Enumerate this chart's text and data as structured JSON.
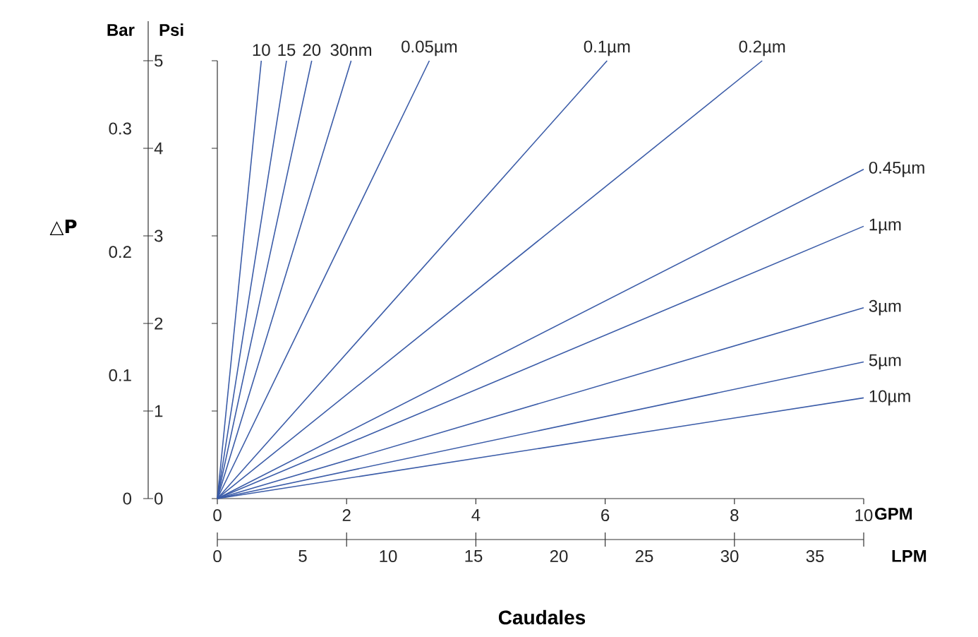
{
  "chart_data": {
    "type": "line",
    "xlabel": "GPM",
    "x2label": "LPM",
    "ylabel": "Psi",
    "y2label": "Bar",
    "annotations": [
      "△**P**",
      "Caudales"
    ],
    "xlim": [
      0,
      10
    ],
    "xticks": [
      0,
      2,
      4,
      6,
      8,
      10
    ],
    "x2lim": [
      0,
      37.85
    ],
    "x2ticks": [
      0,
      5,
      10,
      15,
      20,
      25,
      30,
      35
    ],
    "ylim": [
      0,
      5
    ],
    "yticks": [
      0,
      1,
      2,
      3,
      4,
      5
    ],
    "y2lim": [
      0,
      0.355
    ],
    "y2ticks": [
      0,
      0.1,
      0.2,
      0.3
    ],
    "series": [
      {
        "name": "10",
        "color": "#3b5ca8",
        "x": [
          0,
          0.68
        ],
        "values": [
          0,
          5
        ]
      },
      {
        "name": "15",
        "color": "#3b5ca8",
        "x": [
          0,
          1.07
        ],
        "values": [
          0,
          5
        ]
      },
      {
        "name": "20",
        "color": "#3b5ca8",
        "x": [
          0,
          1.46
        ],
        "values": [
          0,
          5
        ]
      },
      {
        "name": "30nm",
        "color": "#3b5ca8",
        "x": [
          0,
          2.07
        ],
        "values": [
          0,
          5
        ]
      },
      {
        "name": "0.05µm",
        "color": "#3b5ca8",
        "x": [
          0,
          3.28
        ],
        "values": [
          0,
          5
        ]
      },
      {
        "name": "0.1µm",
        "color": "#3b5ca8",
        "x": [
          0,
          6.03
        ],
        "values": [
          0,
          5
        ]
      },
      {
        "name": "0.2µm",
        "color": "#3b5ca8",
        "x": [
          0,
          8.43
        ],
        "values": [
          0,
          5
        ]
      },
      {
        "name": "0.45µm",
        "color": "#3b5ca8",
        "x": [
          0,
          10
        ],
        "values": [
          0,
          3.76
        ]
      },
      {
        "name": "1µm",
        "color": "#3b5ca8",
        "x": [
          0,
          10
        ],
        "values": [
          0,
          3.11
        ]
      },
      {
        "name": "3µm",
        "color": "#3b5ca8",
        "x": [
          0,
          10
        ],
        "values": [
          0,
          2.18
        ]
      },
      {
        "name": "5µm",
        "color": "#3b5ca8",
        "x": [
          0,
          10
        ],
        "values": [
          0,
          1.56
        ]
      },
      {
        "name": "10µm",
        "color": "#3b5ca8",
        "x": [
          0,
          10
        ],
        "values": [
          0,
          1.15
        ]
      }
    ]
  }
}
